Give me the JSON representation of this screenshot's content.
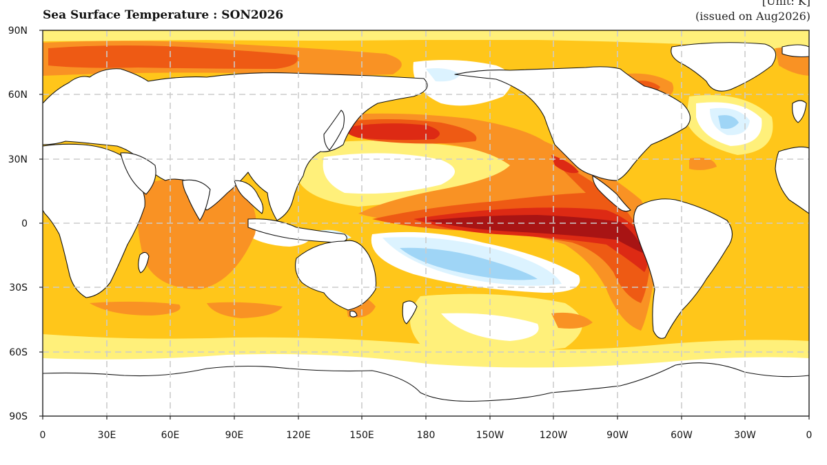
{
  "header": {
    "title": "Sea Surface Temperature : SON2026",
    "unit": "[Unit: K]",
    "issued": "(issued on Aug2026)"
  },
  "axes": {
    "lat_labels": [
      "90N",
      "60N",
      "30N",
      "0",
      "30S",
      "60S",
      "90S"
    ],
    "lon_labels": [
      "0",
      "30E",
      "60E",
      "90E",
      "120E",
      "150E",
      "180",
      "150W",
      "120W",
      "90W",
      "60W",
      "30W",
      "0"
    ],
    "grid": "dashed"
  },
  "legend_colors": {
    "land": "#ffffff",
    "anomaly_near_zero": "#ffffff",
    "weak_negative": "#dcf3ff",
    "moderate_negative": "#9fd5f6",
    "weak_positive": "#fff07a",
    "moderate_positive": "#ffc61a",
    "strong_positive": "#f99224",
    "very_strong_positive": "#ee5a14",
    "extreme_positive": "#dd2a14",
    "maximum_positive": "#a81414"
  }
}
